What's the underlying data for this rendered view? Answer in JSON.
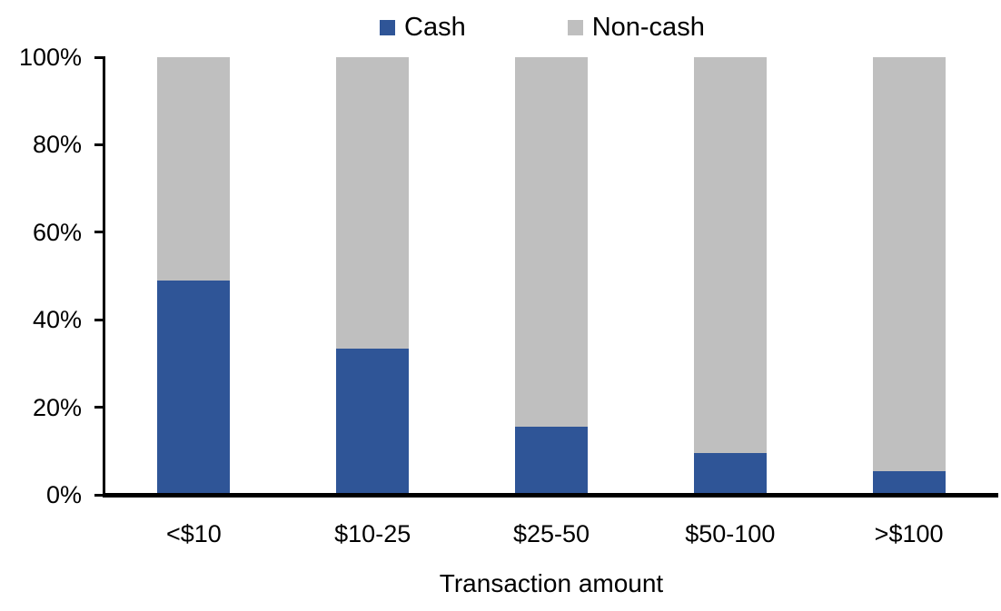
{
  "chart_data": {
    "type": "bar",
    "stacked": true,
    "percent_stacked": true,
    "categories": [
      "<$10",
      "$10-25",
      "$25-50",
      "$50-100",
      ">$100"
    ],
    "series": [
      {
        "name": "Cash",
        "color": "#2F5597",
        "values": [
          49,
          33.5,
          15.5,
          9.5,
          5.5
        ]
      },
      {
        "name": "Non-cash",
        "color": "#BFBFBF",
        "values": [
          51,
          66.5,
          84.5,
          90.5,
          94.5
        ]
      }
    ],
    "title": "",
    "xlabel": "Transaction amount",
    "ylabel": "",
    "ylim": [
      0,
      100
    ],
    "yticks": [
      "0%",
      "20%",
      "40%",
      "60%",
      "80%",
      "100%"
    ],
    "grid": false,
    "legend_position": "top-center",
    "axis_color": "#000000",
    "text_color": "#000000"
  }
}
